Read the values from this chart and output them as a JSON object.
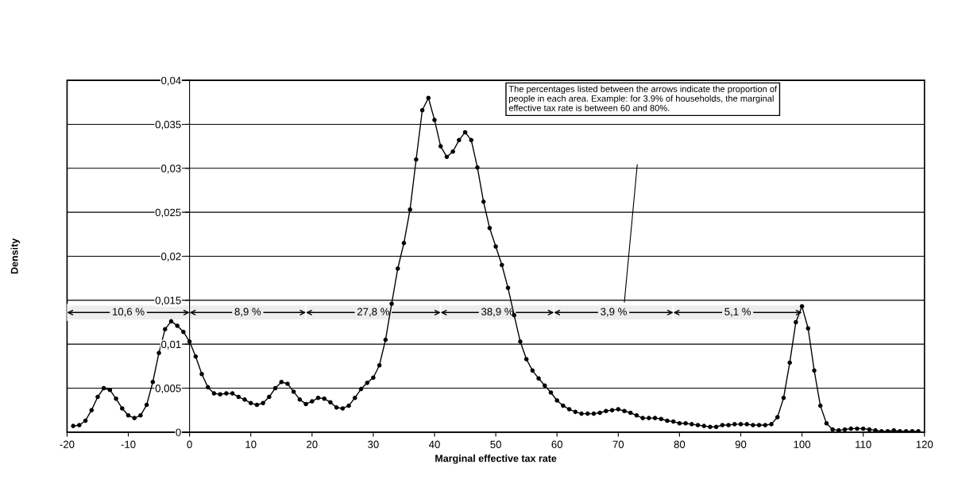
{
  "chart_data": {
    "type": "line",
    "xlabel": "Marginal effective tax rate",
    "ylabel": "Density",
    "x": [
      -19,
      -18,
      -17,
      -16,
      -15,
      -14,
      -13,
      -12,
      -11,
      -10,
      -9,
      -8,
      -7,
      -6,
      -5,
      -4,
      -3,
      -2,
      -1,
      0,
      1,
      2,
      3,
      4,
      5,
      6,
      7,
      8,
      9,
      10,
      11,
      12,
      13,
      14,
      15,
      16,
      17,
      18,
      19,
      20,
      21,
      22,
      23,
      24,
      25,
      26,
      27,
      28,
      29,
      30,
      31,
      32,
      33,
      34,
      35,
      36,
      37,
      38,
      39,
      40,
      41,
      42,
      43,
      44,
      45,
      46,
      47,
      48,
      49,
      50,
      51,
      52,
      53,
      54,
      55,
      56,
      57,
      58,
      59,
      60,
      61,
      62,
      63,
      64,
      65,
      66,
      67,
      68,
      69,
      70,
      71,
      72,
      73,
      74,
      75,
      76,
      77,
      78,
      79,
      80,
      81,
      82,
      83,
      84,
      85,
      86,
      87,
      88,
      89,
      90,
      91,
      92,
      93,
      94,
      95,
      96,
      97,
      98,
      99,
      100,
      101,
      102,
      103,
      104,
      105,
      106,
      107,
      108,
      109,
      110,
      111,
      112,
      113,
      114,
      115,
      116,
      117,
      118,
      119
    ],
    "series": [
      {
        "color": "#000000",
        "values": [
          0.0007,
          0.0008,
          0.0013,
          0.0025,
          0.004,
          0.005,
          0.0048,
          0.0038,
          0.0027,
          0.0019,
          0.0016,
          0.0019,
          0.0031,
          0.0057,
          0.009,
          0.0117,
          0.0126,
          0.0121,
          0.0114,
          0.0103,
          0.0086,
          0.0066,
          0.0051,
          0.0044,
          0.0043,
          0.0044,
          0.0044,
          0.004,
          0.0037,
          0.0033,
          0.0031,
          0.0033,
          0.004,
          0.005,
          0.0057,
          0.0055,
          0.0046,
          0.0037,
          0.0032,
          0.0035,
          0.0039,
          0.0038,
          0.0034,
          0.0028,
          0.0027,
          0.003,
          0.0039,
          0.0049,
          0.0056,
          0.0062,
          0.0076,
          0.0105,
          0.0146,
          0.0186,
          0.0215,
          0.0253,
          0.031,
          0.0366,
          0.038,
          0.0355,
          0.0325,
          0.0313,
          0.0319,
          0.0332,
          0.0341,
          0.0332,
          0.0301,
          0.0262,
          0.0232,
          0.0211,
          0.019,
          0.0164,
          0.0133,
          0.0103,
          0.0083,
          0.007,
          0.0061,
          0.0053,
          0.0045,
          0.0036,
          0.003,
          0.0026,
          0.0023,
          0.0021,
          0.0021,
          0.0021,
          0.0022,
          0.0024,
          0.0025,
          0.0026,
          0.0024,
          0.0022,
          0.0019,
          0.0016,
          0.0016,
          0.0016,
          0.0015,
          0.0013,
          0.0012,
          0.001,
          0.001,
          0.0009,
          0.0008,
          0.0007,
          0.0006,
          0.0006,
          0.0008,
          0.0008,
          0.0009,
          0.0009,
          0.0009,
          0.0008,
          0.0008,
          0.0008,
          0.0009,
          0.0017,
          0.0039,
          0.0079,
          0.0125,
          0.0143,
          0.0118,
          0.007,
          0.003,
          0.001,
          0.0003,
          0.0002,
          0.0003,
          0.0004,
          0.0004,
          0.0004,
          0.0003,
          0.0002,
          0.0001,
          0.0001,
          0.0002,
          0.0001,
          0.0001,
          0.0001,
          0.0001
        ]
      }
    ],
    "xlim": [
      -20,
      120
    ],
    "xticks": [
      -20,
      -10,
      0,
      10,
      20,
      30,
      40,
      50,
      60,
      70,
      80,
      90,
      100,
      110,
      120
    ],
    "ylim": [
      0,
      0.04
    ],
    "yticks": [
      {
        "value": 0,
        "label": "0"
      },
      {
        "value": 0.005,
        "label": "0,005"
      },
      {
        "value": 0.01,
        "label": "0,01"
      },
      {
        "value": 0.015,
        "label": "0,015"
      },
      {
        "value": 0.02,
        "label": "0,02"
      },
      {
        "value": 0.025,
        "label": "0,025"
      },
      {
        "value": 0.03,
        "label": "0,03"
      },
      {
        "value": 0.035,
        "label": "0,035"
      },
      {
        "value": 0.04,
        "label": "0,04"
      }
    ],
    "grid": "y",
    "marker": "circle",
    "line_style": "solid",
    "legend": false,
    "bands": [
      {
        "axis": "x",
        "from": -20,
        "to": 0,
        "label": "10,6 %",
        "color": "#ededed"
      },
      {
        "axis": "x",
        "from": 0,
        "to": 19,
        "label": "8,9 %",
        "color": "#ededed"
      },
      {
        "axis": "x",
        "from": 19,
        "to": 41,
        "label": "27,8 %",
        "color": "#ededed"
      },
      {
        "axis": "x",
        "from": 41,
        "to": 59.5,
        "label": "38,9 %",
        "color": "#ededed"
      },
      {
        "axis": "x",
        "from": 59.5,
        "to": 79,
        "label": "3,9 %",
        "color": "#ededed"
      },
      {
        "axis": "x",
        "from": 79,
        "to": 100,
        "label": "5,1 %",
        "color": "#ededed"
      }
    ],
    "annotations": [
      "The percentages listed between the arrows indicate the proportion of people in each area. Example: for 3.9% of households, the marginal effective tax rate is between 60 and 80%."
    ]
  }
}
